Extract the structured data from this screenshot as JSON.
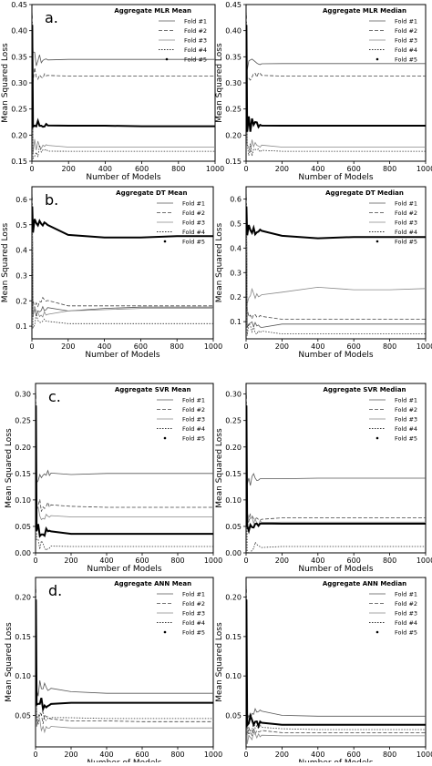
{
  "figure": {
    "x_label": "Number of Models",
    "y_label": "Mean Squared Loss",
    "legend_entries": [
      "Fold #1",
      "Fold #2",
      "Fold #3",
      "Fold #4",
      "Fold #5"
    ]
  },
  "chart_data": [
    {
      "type": "line",
      "letter": "a.",
      "title": "Aggregate MLR Mean",
      "xlabel": "Number of Models",
      "ylabel": "Mean Squared Loss",
      "xlim": [
        0,
        1000
      ],
      "ylim": [
        0.15,
        0.45
      ],
      "xticks": [
        0,
        200,
        400,
        600,
        800,
        1000
      ],
      "yticks": [
        0.15,
        0.2,
        0.25,
        0.3,
        0.35,
        0.4,
        0.45
      ],
      "ytick_labels": [
        "0.15",
        "0.20",
        "0.25",
        "0.30",
        "0.35",
        "0.40",
        "0.45"
      ],
      "legend": "top-right",
      "series": [
        {
          "name": "Fold #1",
          "values": [
            0.345,
            0.345,
            0.345,
            0.345,
            0.345,
            0.345
          ]
        },
        {
          "name": "Fold #2",
          "values": [
            0.315,
            0.313,
            0.313,
            0.313,
            0.313,
            0.313
          ]
        },
        {
          "name": "Fold #3",
          "values": [
            0.18,
            0.177,
            0.177,
            0.177,
            0.177,
            0.177
          ]
        },
        {
          "name": "Fold #4",
          "values": [
            0.17,
            0.169,
            0.169,
            0.169,
            0.169,
            0.169
          ]
        },
        {
          "name": "Fold #5",
          "values": [
            0.22,
            0.218,
            0.218,
            0.217,
            0.217,
            0.217
          ]
        }
      ]
    },
    {
      "type": "line",
      "letter": "",
      "title": "Aggregate MLR Median",
      "xlabel": "Number of Models",
      "ylabel": "Mean Squared Loss",
      "xlim": [
        0,
        1000
      ],
      "ylim": [
        0.15,
        0.45
      ],
      "xticks": [
        0,
        200,
        400,
        600,
        800,
        1000
      ],
      "yticks": [
        0.15,
        0.2,
        0.25,
        0.3,
        0.35,
        0.4,
        0.45
      ],
      "ytick_labels": [
        "0.15",
        "0.20",
        "0.25",
        "0.30",
        "0.35",
        "0.40",
        "0.45"
      ],
      "legend": "top-right",
      "series": [
        {
          "name": "Fold #1",
          "values": [
            0.335,
            0.337,
            0.337,
            0.337,
            0.337,
            0.337
          ]
        },
        {
          "name": "Fold #2",
          "values": [
            0.315,
            0.313,
            0.313,
            0.313,
            0.313,
            0.313
          ]
        },
        {
          "name": "Fold #3",
          "values": [
            0.18,
            0.177,
            0.177,
            0.177,
            0.177,
            0.177
          ]
        },
        {
          "name": "Fold #4",
          "values": [
            0.17,
            0.169,
            0.169,
            0.169,
            0.169,
            0.169
          ]
        },
        {
          "name": "Fold #5",
          "values": [
            0.22,
            0.218,
            0.218,
            0.218,
            0.218,
            0.218
          ]
        }
      ]
    },
    {
      "type": "line",
      "letter": "b.",
      "title": "Aggregate DT Mean",
      "xlabel": "Number of Models",
      "ylabel": "Mean Squared Loss",
      "xlim": [
        0,
        1000
      ],
      "ylim": [
        0.05,
        0.65
      ],
      "xticks": [
        0,
        200,
        400,
        600,
        800,
        1000
      ],
      "yticks": [
        0.1,
        0.2,
        0.3,
        0.4,
        0.5,
        0.6
      ],
      "ytick_labels": [
        "0.1",
        "0.2",
        "0.3",
        "0.4",
        "0.5",
        "0.6"
      ],
      "legend": "top-right",
      "series": [
        {
          "name": "Fold #1",
          "values": [
            0.17,
            0.16,
            0.17,
            0.175,
            0.175,
            0.175
          ]
        },
        {
          "name": "Fold #2",
          "values": [
            0.2,
            0.18,
            0.18,
            0.18,
            0.18,
            0.18
          ]
        },
        {
          "name": "Fold #3",
          "values": [
            0.15,
            0.16,
            0.165,
            0.17,
            0.17,
            0.17
          ]
        },
        {
          "name": "Fold #4",
          "values": [
            0.12,
            0.11,
            0.11,
            0.11,
            0.11,
            0.11
          ]
        },
        {
          "name": "Fold #5",
          "values": [
            0.5,
            0.46,
            0.45,
            0.45,
            0.455,
            0.455
          ]
        }
      ]
    },
    {
      "type": "line",
      "letter": "",
      "title": "Aggregate DT Median",
      "xlabel": "Number of Models",
      "ylabel": "Mean Squared Loss",
      "xlim": [
        0,
        1000
      ],
      "ylim": [
        0.03,
        0.65
      ],
      "xticks": [
        0,
        200,
        400,
        600,
        800,
        1000
      ],
      "yticks": [
        0.1,
        0.2,
        0.3,
        0.4,
        0.5,
        0.6
      ],
      "ytick_labels": [
        "0.1",
        "0.2",
        "0.3",
        "0.4",
        "0.5",
        "0.6"
      ],
      "legend": "top-right",
      "series": [
        {
          "name": "Fold #1",
          "values": [
            0.08,
            0.09,
            0.09,
            0.09,
            0.09,
            0.09
          ]
        },
        {
          "name": "Fold #2",
          "values": [
            0.12,
            0.11,
            0.11,
            0.11,
            0.11,
            0.11
          ]
        },
        {
          "name": "Fold #3",
          "values": [
            0.21,
            0.22,
            0.24,
            0.23,
            0.23,
            0.235
          ]
        },
        {
          "name": "Fold #4",
          "values": [
            0.06,
            0.05,
            0.05,
            0.05,
            0.05,
            0.05
          ]
        },
        {
          "name": "Fold #5",
          "values": [
            0.47,
            0.45,
            0.44,
            0.445,
            0.445,
            0.445
          ]
        }
      ]
    },
    {
      "type": "line",
      "letter": "c.",
      "title": "Aggregate SVR Mean",
      "xlabel": "Number of Models",
      "ylabel": "Mean Squared Loss",
      "xlim": [
        0,
        1000
      ],
      "ylim": [
        0.0,
        0.32
      ],
      "xticks": [
        0,
        200,
        400,
        600,
        800,
        1000
      ],
      "yticks": [
        0.0,
        0.05,
        0.1,
        0.15,
        0.2,
        0.25,
        0.3
      ],
      "ytick_labels": [
        "0.00",
        "0.05",
        "0.10",
        "0.15",
        "0.20",
        "0.25",
        "0.30"
      ],
      "legend": "top-right",
      "series": [
        {
          "name": "Fold #1",
          "values": [
            0.15,
            0.148,
            0.15,
            0.15,
            0.15,
            0.15
          ]
        },
        {
          "name": "Fold #2",
          "values": [
            0.09,
            0.088,
            0.086,
            0.086,
            0.086,
            0.086
          ]
        },
        {
          "name": "Fold #3",
          "values": [
            0.07,
            0.068,
            0.068,
            0.068,
            0.068,
            0.068
          ]
        },
        {
          "name": "Fold #4",
          "values": [
            0.012,
            0.012,
            0.012,
            0.012,
            0.012,
            0.012
          ]
        },
        {
          "name": "Fold #5",
          "values": [
            0.04,
            0.036,
            0.036,
            0.036,
            0.036,
            0.036
          ]
        }
      ]
    },
    {
      "type": "line",
      "letter": "",
      "title": "Aggregate SVR Median",
      "xlabel": "Number of Models",
      "ylabel": "Mean Squared Loss",
      "xlim": [
        0,
        1000
      ],
      "ylim": [
        0.0,
        0.32
      ],
      "xticks": [
        0,
        200,
        400,
        600,
        800,
        1000
      ],
      "yticks": [
        0.0,
        0.05,
        0.1,
        0.15,
        0.2,
        0.25,
        0.3
      ],
      "ytick_labels": [
        "0.00",
        "0.05",
        "0.10",
        "0.15",
        "0.20",
        "0.25",
        "0.30"
      ],
      "legend": "top-right",
      "series": [
        {
          "name": "Fold #1",
          "values": [
            0.14,
            0.14,
            0.141,
            0.141,
            0.141,
            0.141
          ]
        },
        {
          "name": "Fold #2",
          "values": [
            0.065,
            0.066,
            0.066,
            0.066,
            0.066,
            0.066
          ]
        },
        {
          "name": "Fold #3",
          "values": [
            0.058,
            0.058,
            0.058,
            0.058,
            0.058,
            0.058
          ]
        },
        {
          "name": "Fold #4",
          "values": [
            0.012,
            0.012,
            0.012,
            0.012,
            0.012,
            0.012
          ]
        },
        {
          "name": "Fold #5",
          "values": [
            0.055,
            0.055,
            0.055,
            0.055,
            0.055,
            0.055
          ]
        }
      ]
    },
    {
      "type": "line",
      "letter": "d.",
      "title": "Aggregate ANN Mean",
      "xlabel": "Number of Models",
      "ylabel": "Mean Squared Loss",
      "xlim": [
        0,
        1000
      ],
      "ylim": [
        0.01,
        0.225
      ],
      "xticks": [
        0,
        200,
        400,
        600,
        800,
        1000
      ],
      "yticks": [
        0.05,
        0.1,
        0.15,
        0.2
      ],
      "ytick_labels": [
        "0.05",
        "0.10",
        "0.15",
        "0.20"
      ],
      "legend": "top-right",
      "series": [
        {
          "name": "Fold #1",
          "values": [
            0.085,
            0.08,
            0.078,
            0.078,
            0.078,
            0.078
          ]
        },
        {
          "name": "Fold #2",
          "values": [
            0.045,
            0.043,
            0.043,
            0.042,
            0.042,
            0.042
          ]
        },
        {
          "name": "Fold #3",
          "values": [
            0.035,
            0.034,
            0.034,
            0.034,
            0.034,
            0.034
          ]
        },
        {
          "name": "Fold #4",
          "values": [
            0.048,
            0.047,
            0.046,
            0.046,
            0.046,
            0.046
          ]
        },
        {
          "name": "Fold #5",
          "values": [
            0.065,
            0.066,
            0.066,
            0.066,
            0.066,
            0.066
          ]
        }
      ]
    },
    {
      "type": "line",
      "letter": "",
      "title": "Aggregate ANN Median",
      "xlabel": "Number of Models",
      "ylabel": "Mean Squared Loss",
      "xlim": [
        0,
        1000
      ],
      "ylim": [
        0.01,
        0.225
      ],
      "xticks": [
        0,
        200,
        400,
        600,
        800,
        1000
      ],
      "yticks": [
        0.05,
        0.1,
        0.15,
        0.2
      ],
      "ytick_labels": [
        "0.05",
        "0.10",
        "0.15",
        "0.20"
      ],
      "legend": "top-right",
      "series": [
        {
          "name": "Fold #1",
          "values": [
            0.055,
            0.05,
            0.049,
            0.049,
            0.049,
            0.049
          ]
        },
        {
          "name": "Fold #2",
          "values": [
            0.03,
            0.028,
            0.028,
            0.028,
            0.028,
            0.028
          ]
        },
        {
          "name": "Fold #3",
          "values": [
            0.025,
            0.024,
            0.024,
            0.024,
            0.024,
            0.024
          ]
        },
        {
          "name": "Fold #4",
          "values": [
            0.035,
            0.033,
            0.032,
            0.032,
            0.032,
            0.032
          ]
        },
        {
          "name": "Fold #5",
          "values": [
            0.04,
            0.038,
            0.038,
            0.038,
            0.038,
            0.038
          ]
        }
      ]
    }
  ]
}
